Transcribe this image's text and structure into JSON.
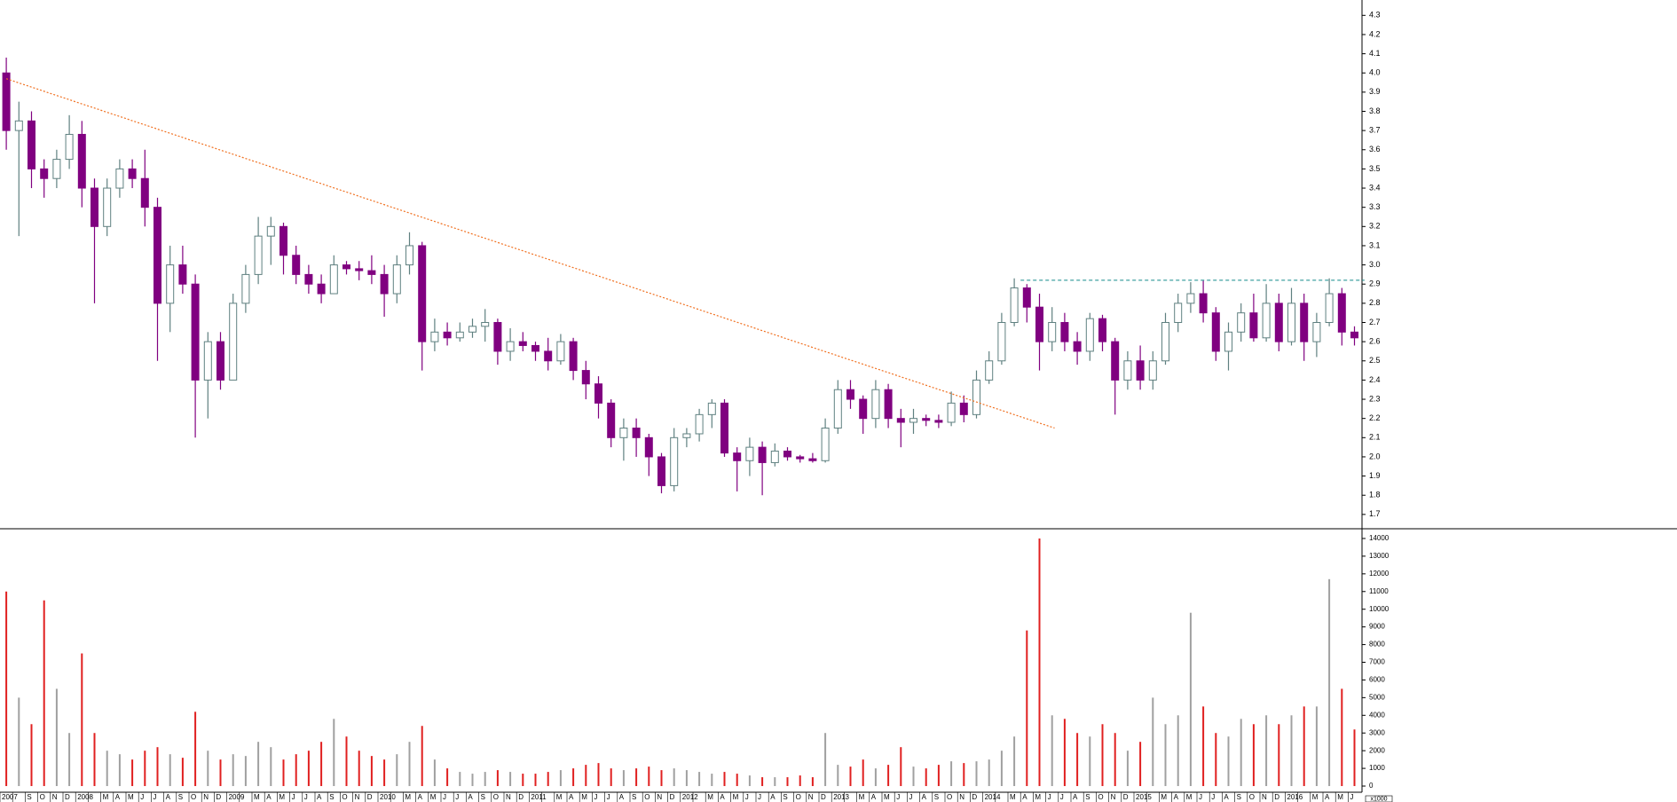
{
  "chart_data": {
    "type": "candlestick",
    "categories": [
      "2007",
      null,
      "S",
      "O",
      "N",
      "D",
      "2008",
      null,
      "M",
      "A",
      "M",
      "J",
      "J",
      "A",
      "S",
      "O",
      "N",
      "D",
      "2009",
      null,
      "M",
      "A",
      "M",
      "J",
      "J",
      "A",
      "S",
      "O",
      "N",
      "D",
      "2010",
      null,
      "M",
      "A",
      "M",
      "J",
      "J",
      "A",
      "S",
      "O",
      "N",
      "D",
      "2011",
      null,
      "M",
      "A",
      "M",
      "J",
      "J",
      "A",
      "S",
      "O",
      "N",
      "D",
      "2012",
      null,
      "M",
      "A",
      "M",
      "J",
      "J",
      "A",
      "S",
      "O",
      "N",
      "D",
      "2013",
      null,
      "M",
      "A",
      "M",
      "J",
      "J",
      "A",
      "S",
      "O",
      "N",
      "D",
      "2014",
      null,
      "M",
      "A",
      "M",
      "J",
      "J",
      "A",
      "S",
      "O",
      "N",
      "D",
      "2015",
      null,
      "M",
      "A",
      "M",
      "J",
      "J",
      "A",
      "S",
      "O",
      "N",
      "D",
      "2016",
      null,
      "M",
      "A",
      "M",
      "J"
    ],
    "open": [
      4.0,
      3.7,
      3.75,
      3.5,
      3.45,
      3.55,
      3.68,
      3.4,
      3.2,
      3.4,
      3.5,
      3.45,
      3.3,
      2.8,
      3.0,
      2.9,
      2.4,
      2.6,
      2.4,
      2.8,
      2.95,
      3.15,
      3.2,
      3.05,
      2.95,
      2.9,
      2.85,
      3.0,
      2.98,
      2.97,
      2.95,
      2.85,
      3.0,
      3.1,
      2.6,
      2.65,
      2.62,
      2.65,
      2.68,
      2.7,
      2.55,
      2.6,
      2.58,
      2.55,
      2.5,
      2.6,
      2.45,
      2.38,
      2.28,
      2.1,
      2.15,
      2.1,
      2.0,
      1.85,
      2.1,
      2.12,
      2.22,
      2.28,
      2.02,
      1.98,
      2.05,
      1.97,
      2.03,
      2.0,
      1.99,
      1.98,
      2.15,
      2.35,
      2.3,
      2.2,
      2.35,
      2.2,
      2.18,
      2.2,
      2.19,
      2.18,
      2.28,
      2.22,
      2.4,
      2.5,
      2.7,
      2.88,
      2.78,
      2.6,
      2.7,
      2.6,
      2.55,
      2.72,
      2.6,
      2.4,
      2.5,
      2.4,
      2.5,
      2.7,
      2.8,
      2.85,
      2.75,
      2.55,
      2.65,
      2.75,
      2.62,
      2.8,
      2.6,
      2.8,
      2.6,
      2.7,
      2.85,
      2.65
    ],
    "high": [
      4.08,
      3.85,
      3.8,
      3.55,
      3.6,
      3.78,
      3.75,
      3.45,
      3.45,
      3.55,
      3.55,
      3.6,
      3.35,
      3.1,
      3.1,
      2.95,
      2.65,
      2.65,
      2.85,
      3.0,
      3.25,
      3.25,
      3.22,
      3.1,
      3.0,
      2.95,
      3.05,
      3.02,
      3.02,
      3.05,
      3.0,
      3.05,
      3.17,
      3.12,
      2.72,
      2.7,
      2.7,
      2.72,
      2.77,
      2.72,
      2.67,
      2.65,
      2.6,
      2.62,
      2.64,
      2.62,
      2.5,
      2.42,
      2.3,
      2.2,
      2.2,
      2.12,
      2.02,
      2.15,
      2.15,
      2.25,
      2.3,
      2.3,
      2.05,
      2.1,
      2.08,
      2.07,
      2.05,
      2.01,
      2.02,
      2.2,
      2.4,
      2.4,
      2.32,
      2.4,
      2.38,
      2.25,
      2.25,
      2.22,
      2.22,
      2.34,
      2.32,
      2.45,
      2.55,
      2.75,
      2.93,
      2.9,
      2.85,
      2.78,
      2.75,
      2.65,
      2.75,
      2.74,
      2.62,
      2.55,
      2.58,
      2.55,
      2.75,
      2.85,
      2.91,
      2.92,
      2.78,
      2.7,
      2.8,
      2.85,
      2.9,
      2.85,
      2.88,
      2.85,
      2.75,
      2.93,
      2.88,
      2.68
    ],
    "low": [
      3.6,
      3.15,
      3.4,
      3.35,
      3.4,
      3.5,
      3.3,
      2.8,
      3.15,
      3.35,
      3.4,
      3.2,
      2.5,
      2.65,
      2.85,
      2.1,
      2.2,
      2.35,
      2.4,
      2.75,
      2.9,
      3.0,
      2.95,
      2.9,
      2.85,
      2.8,
      2.85,
      2.95,
      2.92,
      2.9,
      2.73,
      2.8,
      2.95,
      2.45,
      2.55,
      2.58,
      2.6,
      2.62,
      2.6,
      2.48,
      2.5,
      2.55,
      2.5,
      2.45,
      2.48,
      2.4,
      2.3,
      2.2,
      2.05,
      1.98,
      2.0,
      1.9,
      1.81,
      1.82,
      2.05,
      2.08,
      2.15,
      2.0,
      1.82,
      1.9,
      1.8,
      1.95,
      1.98,
      1.97,
      1.97,
      1.97,
      2.12,
      2.25,
      2.12,
      2.15,
      2.15,
      2.05,
      2.12,
      2.16,
      2.15,
      2.16,
      2.18,
      2.2,
      2.38,
      2.48,
      2.68,
      2.7,
      2.45,
      2.55,
      2.55,
      2.48,
      2.5,
      2.55,
      2.22,
      2.35,
      2.35,
      2.35,
      2.48,
      2.65,
      2.75,
      2.7,
      2.5,
      2.45,
      2.6,
      2.6,
      2.6,
      2.55,
      2.58,
      2.5,
      2.52,
      2.68,
      2.58,
      2.58
    ],
    "close": [
      3.7,
      3.75,
      3.5,
      3.45,
      3.55,
      3.68,
      3.4,
      3.2,
      3.4,
      3.5,
      3.45,
      3.3,
      2.8,
      3.0,
      2.9,
      2.4,
      2.6,
      2.4,
      2.8,
      2.95,
      3.15,
      3.2,
      3.05,
      2.95,
      2.9,
      2.85,
      3.0,
      2.98,
      2.97,
      2.95,
      2.85,
      3.0,
      3.1,
      2.6,
      2.65,
      2.62,
      2.65,
      2.68,
      2.7,
      2.55,
      2.6,
      2.58,
      2.55,
      2.5,
      2.6,
      2.45,
      2.38,
      2.28,
      2.1,
      2.15,
      2.1,
      2.0,
      1.85,
      2.1,
      2.12,
      2.22,
      2.28,
      2.02,
      1.98,
      2.05,
      1.97,
      2.03,
      2.0,
      1.99,
      1.98,
      2.15,
      2.35,
      2.3,
      2.2,
      2.35,
      2.2,
      2.18,
      2.2,
      2.19,
      2.18,
      2.28,
      2.22,
      2.4,
      2.5,
      2.7,
      2.88,
      2.78,
      2.6,
      2.7,
      2.6,
      2.55,
      2.72,
      2.6,
      2.4,
      2.5,
      2.4,
      2.5,
      2.7,
      2.8,
      2.85,
      2.75,
      2.55,
      2.65,
      2.75,
      2.62,
      2.8,
      2.6,
      2.8,
      2.6,
      2.7,
      2.85,
      2.65,
      2.62
    ],
    "volume": [
      11000,
      5000,
      3500,
      10500,
      5500,
      3000,
      7500,
      3000,
      2000,
      1800,
      1500,
      2000,
      2200,
      1800,
      1600,
      4200,
      2000,
      1500,
      1800,
      1700,
      2500,
      2200,
      1500,
      1800,
      2000,
      2500,
      3800,
      2800,
      2000,
      1700,
      1500,
      1800,
      2500,
      3400,
      1500,
      1000,
      800,
      700,
      800,
      900,
      800,
      700,
      700,
      800,
      900,
      1000,
      1200,
      1300,
      1000,
      900,
      1000,
      1100,
      900,
      1000,
      900,
      800,
      700,
      800,
      700,
      600,
      500,
      500,
      500,
      600,
      500,
      3000,
      1200,
      1100,
      1500,
      1000,
      1200,
      2200,
      1100,
      1000,
      1200,
      1400,
      1300,
      1400,
      1500,
      2000,
      2800,
      8800,
      14000,
      4000,
      3800,
      3000,
      2800,
      3500,
      3000,
      2000,
      2500,
      5000,
      3500,
      4000,
      9800,
      4500,
      3000,
      2800,
      3800,
      3500,
      4000,
      3500,
      4000,
      4500,
      4500,
      11700,
      5500,
      3200
    ],
    "ylim": [
      1.63,
      4.38
    ],
    "yticks": [
      1.7,
      1.8,
      1.9,
      {
        "value": 2,
        "label": "2.0"
      },
      2.1,
      2.2,
      2.3,
      2.4,
      2.5,
      2.6,
      2.7,
      2.8,
      2.9,
      {
        "value": 3,
        "label": "3.0"
      },
      3.1,
      3.2,
      3.3,
      3.4,
      3.5,
      3.6,
      3.7,
      3.8,
      3.9,
      {
        "value": 4,
        "label": "4.0"
      },
      4.1,
      4.2,
      4.3
    ],
    "volume_ylim": [
      -450,
      14500
    ],
    "volume_yticks": [
      0,
      1000,
      2000,
      3000,
      4000,
      5000,
      6000,
      7000,
      8000,
      9000,
      10000,
      11000,
      12000,
      13000,
      14000
    ],
    "volume_unit": "x1000",
    "up_color": "#5f8080",
    "down_color": "#800080",
    "volume_up_color": "#a0a0a0",
    "volume_down_color": "#e02020",
    "lines": [
      {
        "x": [
          0,
          83.2
        ],
        "y": [
          3.97,
          2.15
        ],
        "color": "#f07020",
        "style": "dotted"
      },
      {
        "x": [
          80.5,
          107.8
        ],
        "y": [
          2.92,
          2.92
        ],
        "color": "#40a0a0",
        "style": "dashed"
      }
    ]
  }
}
